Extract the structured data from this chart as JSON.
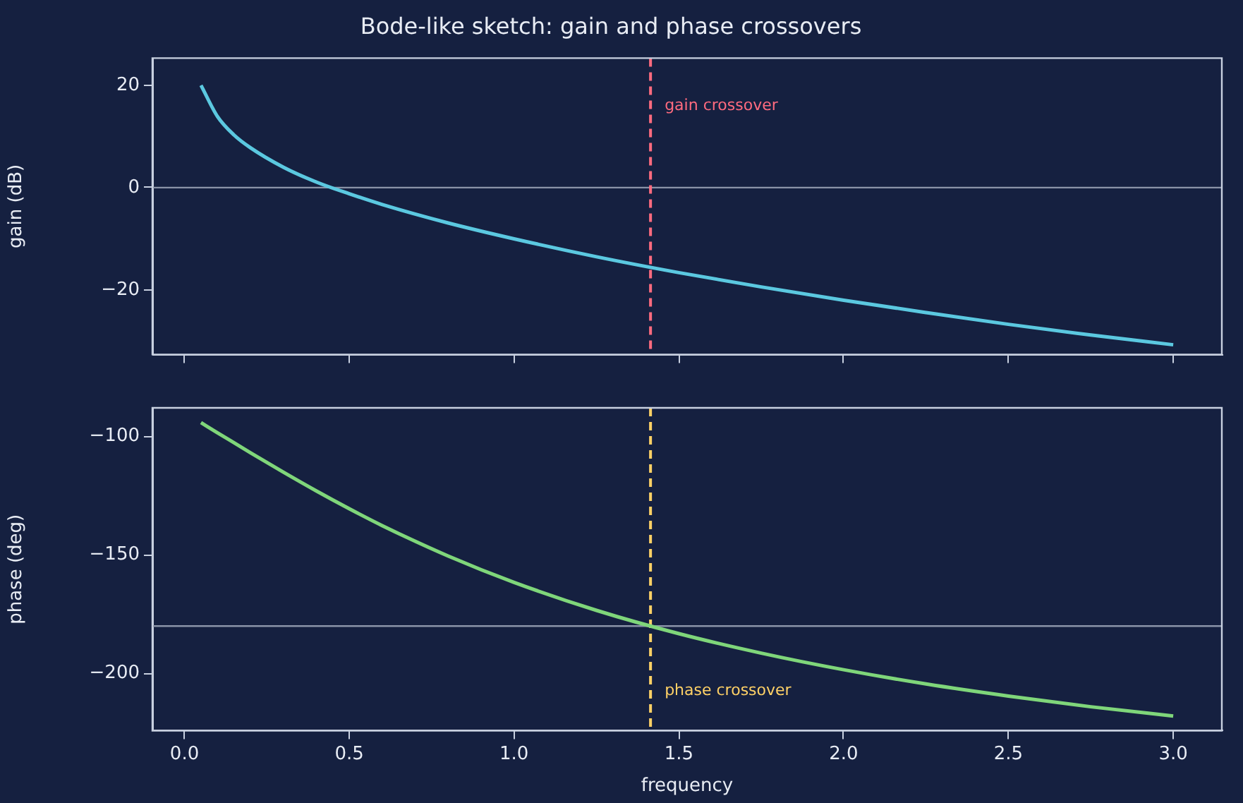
{
  "chart_data": [
    {
      "type": "line",
      "title": "Bode-like sketch: gain and phase crossovers",
      "ylabel": "gain (dB)",
      "x": [
        0.05,
        0.1,
        0.15,
        0.2,
        0.3,
        0.4,
        0.5,
        0.6,
        0.8,
        1.0,
        1.25,
        1.5,
        1.75,
        2.0,
        2.25,
        2.5,
        2.75,
        3.0
      ],
      "series": [
        {
          "color": "#5bc8e0",
          "values": [
            20.0,
            13.9,
            10.3,
            7.8,
            4.0,
            1.1,
            -1.2,
            -3.3,
            -6.9,
            -10.0,
            -13.5,
            -16.6,
            -19.4,
            -22.0,
            -24.4,
            -26.7,
            -28.8,
            -30.7
          ]
        }
      ],
      "xlim": [
        -0.0975,
        3.1475
      ],
      "ylim": [
        -32.6,
        25.3
      ],
      "xticks": [
        {
          "value": 0,
          "label": null
        },
        {
          "value": 0.5,
          "label": null
        },
        {
          "value": 1,
          "label": null
        },
        {
          "value": 1.5,
          "label": null
        },
        {
          "value": 2,
          "label": null
        },
        {
          "value": 2.5,
          "label": null
        },
        {
          "value": 3,
          "label": null
        }
      ],
      "yticks": [
        {
          "value": -20,
          "label": "−20"
        },
        0,
        20
      ],
      "tick_labels": "y",
      "marker": "none",
      "line_style": "solid",
      "grid": false,
      "ref_lines": [
        {
          "axis": "y",
          "value": 0,
          "color": "#8a93a8",
          "line_style": "solid"
        },
        {
          "axis": "x",
          "value": 1.414,
          "color": "#ff6b7f",
          "line_style": "dashed"
        }
      ],
      "annotations": [
        "gain crossover"
      ]
    },
    {
      "type": "line",
      "xlabel": "frequency",
      "ylabel": "phase (deg)",
      "x": [
        0.05,
        0.1,
        0.15,
        0.2,
        0.3,
        0.4,
        0.5,
        0.6,
        0.8,
        1.0,
        1.25,
        1.5,
        1.75,
        2.0,
        2.25,
        2.5,
        2.75,
        3.0
      ],
      "series": [
        {
          "color": "#7fd67a",
          "values": [
            -94.3,
            -98.6,
            -102.8,
            -107.0,
            -115.2,
            -123.1,
            -130.6,
            -137.7,
            -150.5,
            -161.6,
            -173.4,
            -183.2,
            -191.4,
            -198.4,
            -204.4,
            -209.5,
            -214.0,
            -217.9
          ]
        }
      ],
      "xlim": [
        -0.0975,
        3.1475
      ],
      "ylim": [
        -224.1,
        -88.1
      ],
      "xticks": [
        {
          "value": 0,
          "label": "0.0"
        },
        {
          "value": 0.5,
          "label": "0.5"
        },
        {
          "value": 1,
          "label": "1.0"
        },
        {
          "value": 1.5,
          "label": "1.5"
        },
        {
          "value": 2,
          "label": "2.0"
        },
        {
          "value": 2.5,
          "label": "2.5"
        },
        {
          "value": 3,
          "label": "3.0"
        }
      ],
      "yticks": [
        {
          "value": -200,
          "label": "−200"
        },
        {
          "value": -150,
          "label": "−150"
        },
        {
          "value": -100,
          "label": "−100"
        }
      ],
      "marker": "none",
      "line_style": "solid",
      "grid": false,
      "ref_lines": [
        {
          "axis": "y",
          "value": -180,
          "color": "#8a93a8",
          "line_style": "solid"
        },
        {
          "axis": "x",
          "value": 1.414,
          "color": "#ffd166",
          "line_style": "dashed"
        }
      ],
      "annotations": [
        "phase crossover"
      ]
    }
  ]
}
